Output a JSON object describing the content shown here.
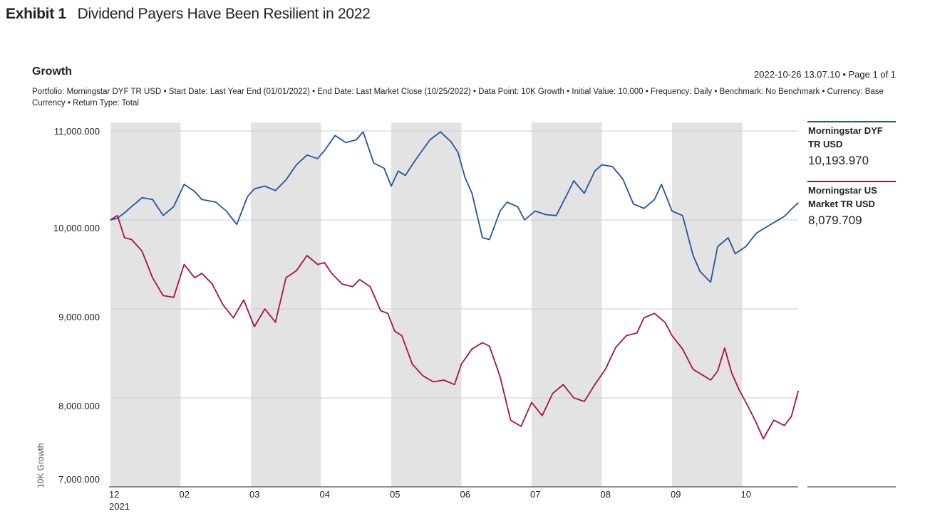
{
  "exhibit": {
    "label": "Exhibit 1",
    "title": "Dividend Payers Have Been Resilient in 2022"
  },
  "section_title": "Growth",
  "timestamp": "2022-10-26 13.07.10 • Page 1 of 1",
  "meta_line": "Portfolio: Morningstar DYF TR USD • Start Date: Last Year End (01/01/2022) • End Date: Last Market Close (10/25/2022) • Data Point: 10K Growth • Initial Value: 10,000 • Frequency: Daily • Benchmark: No Benchmark • Currency: Base Currency • Return Type: Total",
  "colors": {
    "dyf": "#1f56a0",
    "us_market": "#a8123e",
    "shade": "#e3e3e3",
    "grid": "#cccccc"
  },
  "chart_data": {
    "type": "line",
    "ylabel": "10K Growth",
    "ylim": [
      7000,
      11000
    ],
    "y_ticks": [
      {
        "value": 11000,
        "label": "11,000.000"
      },
      {
        "value": 10000,
        "label": "10,000.000"
      },
      {
        "value": 9000,
        "label": "9,000.000"
      },
      {
        "value": 8000,
        "label": "8,000.000"
      },
      {
        "value": 7000,
        "label": "7,000.000"
      }
    ],
    "x_ticks": [
      "12",
      "02",
      "03",
      "04",
      "05",
      "06",
      "07",
      "08",
      "09",
      "10"
    ],
    "x_year_label": "2021",
    "x_domain_months": [
      0,
      9.8
    ],
    "shaded_bands": [
      [
        0,
        1
      ],
      [
        2,
        3
      ],
      [
        4,
        5
      ],
      [
        6,
        7
      ],
      [
        8,
        9
      ]
    ],
    "grid": true,
    "legend_position": "right",
    "series": [
      {
        "name": "Morningstar DYF TR USD",
        "legend_lines": [
          "Morningstar DYF",
          "TR USD"
        ],
        "end_value_label": "10,193.970",
        "x": [
          0,
          0.1,
          0.2,
          0.3,
          0.45,
          0.6,
          0.75,
          0.9,
          1.05,
          1.2,
          1.3,
          1.5,
          1.65,
          1.8,
          1.95,
          2.05,
          2.2,
          2.35,
          2.5,
          2.65,
          2.8,
          2.95,
          3.05,
          3.2,
          3.35,
          3.5,
          3.6,
          3.75,
          3.9,
          4.0,
          4.1,
          4.2,
          4.35,
          4.55,
          4.7,
          4.85,
          4.95,
          5.05,
          5.15,
          5.3,
          5.4,
          5.55,
          5.65,
          5.8,
          5.9,
          6.05,
          6.2,
          6.35,
          6.5,
          6.6,
          6.75,
          6.9,
          7.0,
          7.15,
          7.3,
          7.45,
          7.6,
          7.75,
          7.85,
          8.0,
          8.15,
          8.3,
          8.4,
          8.55,
          8.65,
          8.8,
          8.9,
          9.05,
          9.2,
          9.3,
          9.45,
          9.6,
          9.7,
          9.8
        ],
        "values": [
          10000,
          10020,
          10080,
          10150,
          10250,
          10230,
          10050,
          10150,
          10400,
          10320,
          10230,
          10200,
          10100,
          9950,
          10260,
          10350,
          10380,
          10330,
          10450,
          10620,
          10730,
          10690,
          10780,
          10950,
          10870,
          10900,
          10990,
          10640,
          10580,
          10380,
          10550,
          10500,
          10680,
          10900,
          10990,
          10880,
          10760,
          10480,
          10300,
          9800,
          9780,
          10100,
          10200,
          10150,
          10000,
          10100,
          10060,
          10050,
          10280,
          10440,
          10300,
          10550,
          10620,
          10600,
          10460,
          10180,
          10130,
          10230,
          10400,
          10100,
          10050,
          9600,
          9420,
          9300,
          9700,
          9800,
          9620,
          9700,
          9850,
          9900,
          9970,
          10040,
          10120,
          10194
        ]
      },
      {
        "name": "Morningstar US Market TR USD",
        "legend_lines": [
          "Morningstar US",
          "Market TR USD"
        ],
        "end_value_label": "8,079.709",
        "x": [
          0,
          0.1,
          0.2,
          0.3,
          0.45,
          0.6,
          0.75,
          0.9,
          1.05,
          1.2,
          1.3,
          1.45,
          1.6,
          1.75,
          1.9,
          2.05,
          2.2,
          2.35,
          2.5,
          2.65,
          2.8,
          2.95,
          3.05,
          3.15,
          3.3,
          3.45,
          3.55,
          3.7,
          3.85,
          3.95,
          4.05,
          4.15,
          4.3,
          4.45,
          4.6,
          4.75,
          4.9,
          5.0,
          5.15,
          5.3,
          5.4,
          5.55,
          5.7,
          5.85,
          6.0,
          6.15,
          6.3,
          6.45,
          6.6,
          6.75,
          6.9,
          7.05,
          7.2,
          7.35,
          7.5,
          7.6,
          7.75,
          7.9,
          8.0,
          8.15,
          8.3,
          8.45,
          8.55,
          8.65,
          8.75,
          8.85,
          8.95,
          9.1,
          9.2,
          9.3,
          9.45,
          9.6,
          9.7,
          9.8
        ],
        "values": [
          10000,
          10050,
          9800,
          9780,
          9650,
          9350,
          9150,
          9130,
          9500,
          9350,
          9400,
          9280,
          9050,
          8900,
          9100,
          8800,
          9000,
          8850,
          9350,
          9430,
          9600,
          9500,
          9520,
          9400,
          9280,
          9250,
          9330,
          9250,
          8980,
          8950,
          8750,
          8700,
          8380,
          8250,
          8180,
          8200,
          8150,
          8380,
          8550,
          8620,
          8580,
          8240,
          7750,
          7680,
          7950,
          7800,
          8050,
          8150,
          8000,
          7960,
          8150,
          8320,
          8570,
          8700,
          8730,
          8900,
          8950,
          8850,
          8700,
          8550,
          8320,
          8250,
          8200,
          8300,
          8560,
          8280,
          8100,
          7880,
          7720,
          7540,
          7750,
          7690,
          7790,
          8080
        ]
      }
    ]
  }
}
